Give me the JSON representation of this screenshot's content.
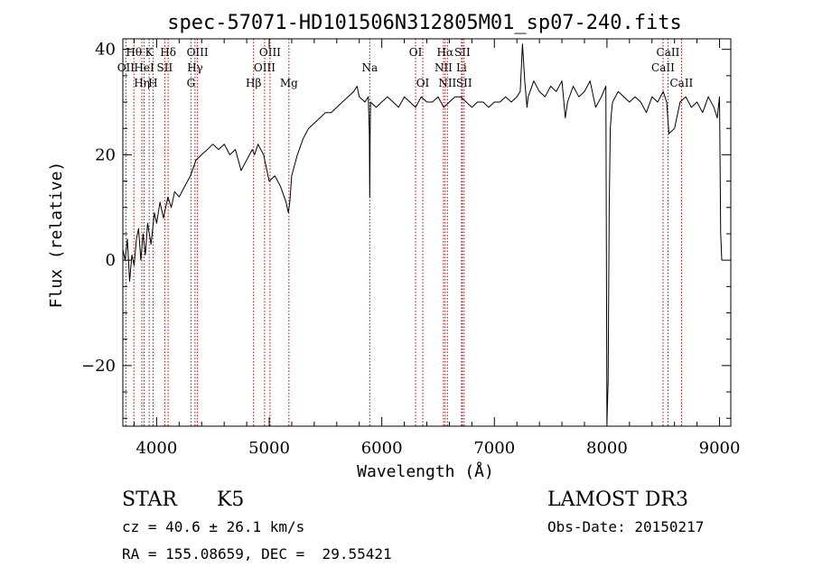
{
  "chart_data": {
    "type": "line",
    "title": "spec-57071-HD101506N312805M01_sp07-240.fits",
    "xlabel": "Wavelength (Å)",
    "ylabel": "Flux (relative)",
    "xlim": [
      3700,
      9100
    ],
    "ylim": [
      -31.5,
      42
    ],
    "x_ticks": [
      4000,
      5000,
      6000,
      7000,
      8000,
      9000
    ],
    "y_ticks": [
      -20,
      0,
      20,
      40
    ],
    "grid": false,
    "series": [
      {
        "name": "spectrum",
        "x": [
          3700,
          3720,
          3740,
          3760,
          3780,
          3800,
          3820,
          3840,
          3860,
          3880,
          3900,
          3920,
          3950,
          3980,
          4000,
          4030,
          4060,
          4100,
          4130,
          4160,
          4200,
          4250,
          4300,
          4350,
          4400,
          4450,
          4500,
          4550,
          4600,
          4650,
          4700,
          4750,
          4800,
          4850,
          4870,
          4900,
          4950,
          5000,
          5050,
          5100,
          5150,
          5170,
          5183,
          5200,
          5250,
          5300,
          5350,
          5400,
          5450,
          5500,
          5550,
          5600,
          5650,
          5700,
          5750,
          5780,
          5800,
          5850,
          5880,
          5890,
          5893,
          5896,
          5900,
          5950,
          6000,
          6050,
          6100,
          6150,
          6200,
          6250,
          6300,
          6350,
          6400,
          6450,
          6500,
          6550,
          6600,
          6650,
          6700,
          6750,
          6800,
          6850,
          6900,
          6950,
          7000,
          7050,
          7100,
          7150,
          7200,
          7230,
          7250,
          7270,
          7290,
          7300,
          7350,
          7400,
          7450,
          7500,
          7550,
          7600,
          7630,
          7650,
          7700,
          7750,
          7800,
          7850,
          7900,
          7950,
          7990,
          8000,
          8010,
          8020,
          8030,
          8040,
          8050,
          8100,
          8150,
          8200,
          8250,
          8300,
          8350,
          8400,
          8450,
          8500,
          8530,
          8550,
          8600,
          8650,
          8700,
          8750,
          8800,
          8850,
          8900,
          8950,
          8980,
          9000,
          9010,
          9020
        ],
        "y": [
          2,
          0,
          4,
          -4,
          1,
          -1,
          4,
          6,
          0,
          5,
          1,
          7,
          3,
          9,
          7,
          11,
          8,
          12,
          10,
          13,
          12,
          14,
          16,
          19,
          20,
          21,
          22,
          21,
          22,
          20,
          21,
          17,
          19,
          21,
          20,
          22,
          20,
          15,
          16,
          14,
          11,
          9,
          11,
          16,
          20,
          23,
          25,
          26,
          27,
          28,
          28,
          29,
          30,
          31,
          32,
          33,
          31,
          30,
          31,
          24,
          12,
          23,
          30,
          29,
          30,
          31,
          30,
          29,
          31,
          30,
          29,
          31,
          30,
          30,
          31,
          29,
          30,
          31,
          31,
          30,
          29,
          30,
          30,
          29,
          30,
          30,
          31,
          30,
          31,
          32,
          41,
          34,
          29,
          31,
          34,
          32,
          31,
          33,
          32,
          34,
          27,
          30,
          33,
          31,
          32,
          34,
          29,
          31,
          33,
          -31,
          -23,
          10,
          25,
          28,
          30,
          32,
          31,
          30,
          31,
          30,
          28,
          31,
          30,
          32,
          30,
          24,
          25,
          30,
          31,
          29,
          30,
          28,
          31,
          29,
          27,
          31,
          5,
          0
        ]
      }
    ],
    "line_markers": [
      {
        "wavelength": 3727,
        "label": "OII",
        "row": 2
      },
      {
        "wavelength": 3798,
        "label": "Hθ",
        "row": 1
      },
      {
        "wavelength": 3869,
        "label": "Hη",
        "row": 3
      },
      {
        "wavelength": 3889,
        "label": "HeI",
        "row": 2
      },
      {
        "wavelength": 3934,
        "label": "K",
        "row": 1
      },
      {
        "wavelength": 3968,
        "label": "H",
        "row": 3
      },
      {
        "wavelength": 4072,
        "label": "SII",
        "row": 2
      },
      {
        "wavelength": 4102,
        "label": "Hδ",
        "row": 1
      },
      {
        "wavelength": 4305,
        "label": "G",
        "row": 3
      },
      {
        "wavelength": 4341,
        "label": "Hγ",
        "row": 2
      },
      {
        "wavelength": 4363,
        "label": "OIII",
        "row": 1
      },
      {
        "wavelength": 4861,
        "label": "Hβ",
        "row": 3
      },
      {
        "wavelength": 4959,
        "label": "OIII",
        "row": 2
      },
      {
        "wavelength": 5007,
        "label": "OIII",
        "row": 1
      },
      {
        "wavelength": 5175,
        "label": "Mg",
        "row": 3
      },
      {
        "wavelength": 5893,
        "label": "Na",
        "row": 2
      },
      {
        "wavelength": 6300,
        "label": "OI",
        "row": 1
      },
      {
        "wavelength": 6364,
        "label": "OI",
        "row": 3
      },
      {
        "wavelength": 6548,
        "label": "NII",
        "row": 2
      },
      {
        "wavelength": 6563,
        "label": "Hα",
        "row": 1
      },
      {
        "wavelength": 6583,
        "label": "NII",
        "row": 3
      },
      {
        "wavelength": 6708,
        "label": "Li",
        "row": 2
      },
      {
        "wavelength": 6716,
        "label": "SII",
        "row": 1
      },
      {
        "wavelength": 6731,
        "label": "SII",
        "row": 3
      },
      {
        "wavelength": 8498,
        "label": "CaII",
        "row": 2
      },
      {
        "wavelength": 8542,
        "label": "CaII",
        "row": 1
      },
      {
        "wavelength": 8662,
        "label": "CaII",
        "row": 3
      }
    ]
  },
  "info": {
    "class": "STAR",
    "subclass": "K5",
    "cz": "cz = 40.6 ± 26.1 km/s",
    "coords": "RA = 155.08659, DEC =  29.55421",
    "survey": "LAMOST DR3",
    "obs_date": "Obs-Date: 20150217"
  },
  "colors": {
    "line": "#000000",
    "marker": "#c00000",
    "text": "#000000",
    "background": "#ffffff"
  }
}
